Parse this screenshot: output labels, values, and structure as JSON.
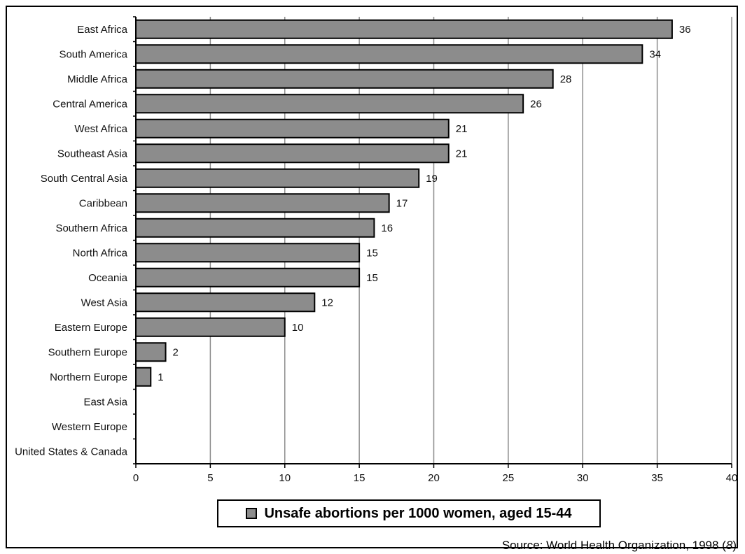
{
  "colors": {
    "bar_fill": "#8c8c8c",
    "bar_stroke": "#000000",
    "grid": "#8c8c8c",
    "axis": "#000000"
  },
  "legend": {
    "label": "Unsafe abortions per 1000 women, aged 15-44",
    "swatch_color": "#8c8c8c"
  },
  "source": {
    "prefix": "Source: World Health Organization, 1998 (",
    "ref": "8",
    "suffix": ")"
  },
  "chart_data": {
    "type": "bar",
    "orientation": "horizontal",
    "categories": [
      "East Africa",
      "South America",
      "Middle Africa",
      "Central America",
      "West Africa",
      "Southeast Asia",
      "South Central Asia",
      "Caribbean",
      "Southern Africa",
      "North Africa",
      "Oceania",
      "West Asia",
      "Eastern Europe",
      "Southern Europe",
      "Northern Europe",
      "East Asia",
      "Western Europe",
      "United States & Canada"
    ],
    "values": [
      36,
      34,
      28,
      26,
      21,
      21,
      19,
      17,
      16,
      15,
      15,
      12,
      10,
      2,
      1,
      0,
      0,
      0
    ],
    "data_labels": [
      "36",
      "34",
      "28",
      "26",
      "21",
      "21",
      "19",
      "17",
      "16",
      "15",
      "15",
      "12",
      "10",
      "2",
      "1",
      "",
      "",
      ""
    ],
    "series": [
      {
        "name": "Unsafe abortions per 1000 women, aged 15-44",
        "values": [
          36,
          34,
          28,
          26,
          21,
          21,
          19,
          17,
          16,
          15,
          15,
          12,
          10,
          2,
          1,
          0,
          0,
          0
        ]
      }
    ],
    "xlim": [
      0,
      40
    ],
    "xticks": [
      0,
      5,
      10,
      15,
      20,
      25,
      30,
      35,
      40
    ],
    "xtick_labels": [
      "0",
      "5",
      "10",
      "15",
      "20",
      "25",
      "30",
      "35",
      "40"
    ],
    "grid": "vertical",
    "legend_position": "bottom-center",
    "title": "",
    "xlabel": "",
    "ylabel": ""
  }
}
